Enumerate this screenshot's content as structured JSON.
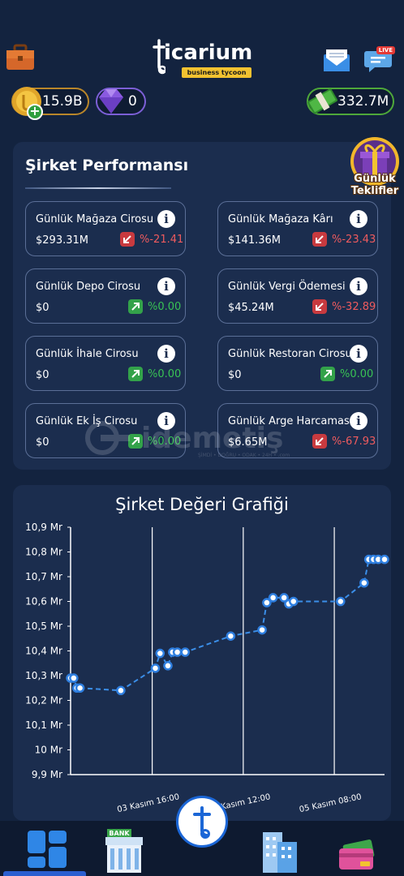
{
  "header": {
    "logo_text": "icarium",
    "logo_subtitle": "business tycoon",
    "live_badge": "LIVE"
  },
  "balances": {
    "coins": "15.9B",
    "gems": "0",
    "cash": "332.7M"
  },
  "performance": {
    "title": "Şirket Performansı",
    "gift_label_line1": "Günlük",
    "gift_label_line2": "Teklifler",
    "stats": [
      {
        "label": "Günlük Mağaza Cirosu",
        "value": "$293.31M",
        "change": "%-21.41",
        "direction": "down"
      },
      {
        "label": "Günlük Mağaza Kârı",
        "value": "$141.36M",
        "change": "%-23.43",
        "direction": "down"
      },
      {
        "label": "Günlük Depo Cirosu",
        "value": "$0",
        "change": "%0.00",
        "direction": "up"
      },
      {
        "label": "Günlük Vergi Ödemesi",
        "value": "$45.24M",
        "change": "%-32.89",
        "direction": "down"
      },
      {
        "label": "Günlük İhale Cirosu",
        "value": "$0",
        "change": "%0.00",
        "direction": "up"
      },
      {
        "label": "Günlük Restoran Cirosu",
        "value": "$0",
        "change": "%0.00",
        "direction": "up"
      },
      {
        "label": "Günlük Ek İş Cirosu",
        "value": "$0",
        "change": "%0.00",
        "direction": "up"
      },
      {
        "label": "Günlük Arge Harcaması",
        "value": "$6.65M",
        "change": "%-67.93",
        "direction": "down"
      }
    ]
  },
  "watermark": {
    "text": "idemetiş",
    "sub": "ŞİMDİ • DOĞRU • ODAK • 24H • .com"
  },
  "chart_data": {
    "type": "line",
    "title": "Şirket Değeri Grafiği",
    "y_ticks": [
      "10,9 Mr",
      "10,8 Mr",
      "10,7 Mr",
      "10,6 Mr",
      "10,5 Mr",
      "10,4 Mr",
      "10,3 Mr",
      "10,2 Mr",
      "10,1 Mr",
      "10 Mr",
      "9,9 Mr"
    ],
    "ylim": [
      9.9,
      10.9
    ],
    "x_ticks": [
      {
        "label": "03 Kasım 16:00",
        "x": 0.26
      },
      {
        "label": "04 Kasım 12:00",
        "x": 0.55
      },
      {
        "label": "05 Kasım 08:00",
        "x": 0.84
      }
    ],
    "grid": "vertical",
    "series": [
      {
        "x": 0.0,
        "y": 10.29
      },
      {
        "x": 0.01,
        "y": 10.29
      },
      {
        "x": 0.02,
        "y": 10.25
      },
      {
        "x": 0.03,
        "y": 10.25
      },
      {
        "x": 0.16,
        "y": 10.24
      },
      {
        "x": 0.27,
        "y": 10.33
      },
      {
        "x": 0.285,
        "y": 10.39
      },
      {
        "x": 0.31,
        "y": 10.34
      },
      {
        "x": 0.325,
        "y": 10.395
      },
      {
        "x": 0.34,
        "y": 10.395
      },
      {
        "x": 0.365,
        "y": 10.395
      },
      {
        "x": 0.51,
        "y": 10.46
      },
      {
        "x": 0.61,
        "y": 10.485
      },
      {
        "x": 0.625,
        "y": 10.595
      },
      {
        "x": 0.645,
        "y": 10.615
      },
      {
        "x": 0.68,
        "y": 10.615
      },
      {
        "x": 0.695,
        "y": 10.59
      },
      {
        "x": 0.71,
        "y": 10.6
      },
      {
        "x": 0.86,
        "y": 10.6
      },
      {
        "x": 0.935,
        "y": 10.675
      },
      {
        "x": 0.95,
        "y": 10.77
      },
      {
        "x": 0.965,
        "y": 10.77
      },
      {
        "x": 0.98,
        "y": 10.77
      },
      {
        "x": 1.0,
        "y": 10.77
      }
    ]
  }
}
